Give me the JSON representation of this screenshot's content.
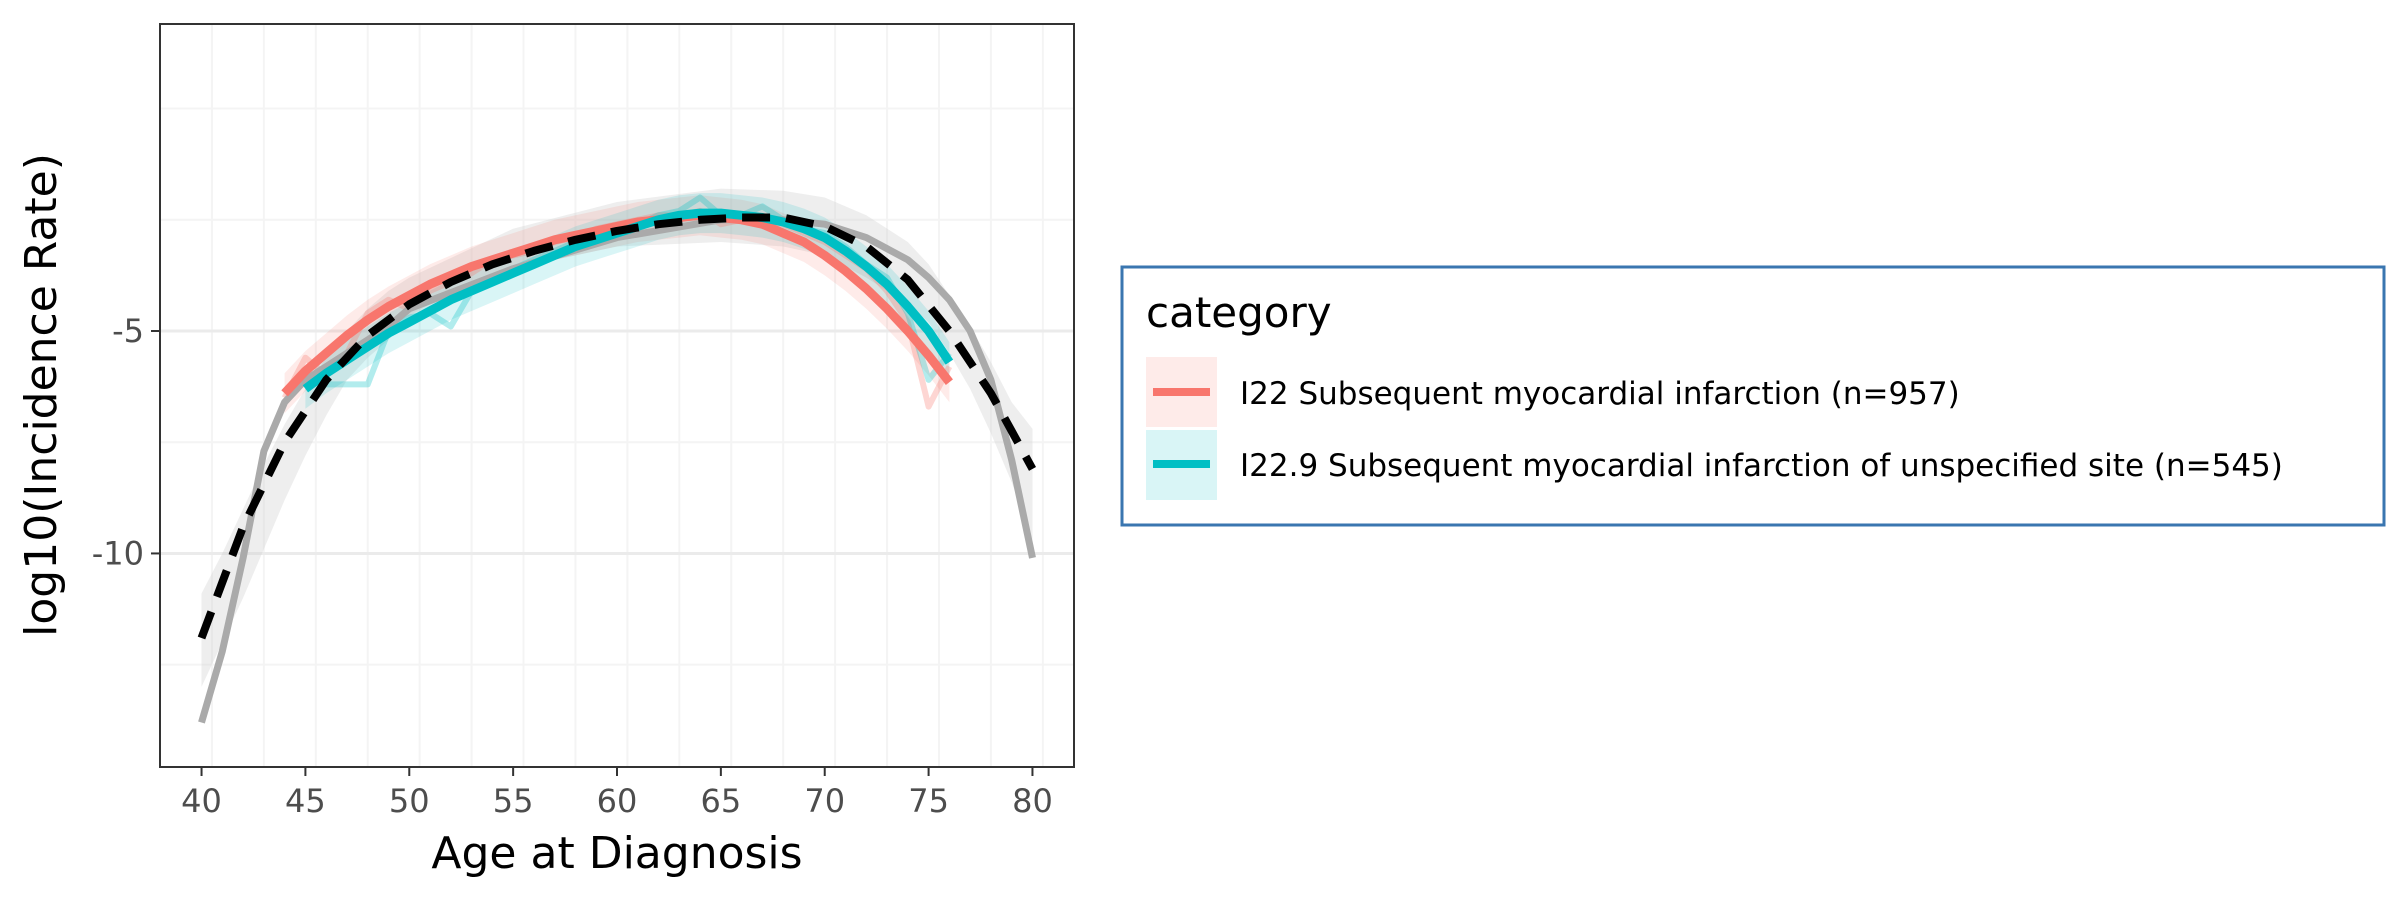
{
  "chart_data": {
    "type": "line",
    "xlabel": "Age at Diagnosis",
    "ylabel": "log10(Incidence Rate)",
    "xlim": [
      38,
      82
    ],
    "ylim": [
      -14.8,
      1.9
    ],
    "x_ticks": [
      40,
      45,
      50,
      55,
      60,
      65,
      70,
      75,
      80
    ],
    "x_tick_labels": [
      "40",
      "45",
      "50",
      "55",
      "60",
      "65",
      "70",
      "75",
      "80"
    ],
    "y_ticks": [
      -5,
      -10
    ],
    "y_tick_labels": [
      "-5",
      "-10"
    ],
    "grid": true,
    "legend": {
      "title": "category",
      "position": "right",
      "border_color": "#3a76b0"
    },
    "reference": {
      "population_curve": {
        "color": "#aaaaaa",
        "x": [
          40,
          41,
          42,
          43,
          44,
          45,
          46,
          47,
          48,
          49,
          50,
          55,
          60,
          65,
          68,
          70,
          72,
          74,
          75,
          76,
          77,
          78,
          79,
          80
        ],
        "y": [
          -13.8,
          -12.2,
          -10.1,
          -7.7,
          -6.6,
          -6.1,
          -5.8,
          -5.5,
          -5.2,
          -4.9,
          -4.5,
          -3.6,
          -2.9,
          -2.5,
          -2.5,
          -2.6,
          -2.9,
          -3.4,
          -3.8,
          -4.3,
          -5.0,
          -6.1,
          -7.9,
          -10.1
        ]
      },
      "population_band": {
        "color": "#cfcfcf",
        "x": [
          40,
          41,
          42,
          43,
          44,
          45,
          46,
          47,
          48,
          49,
          50,
          55,
          60,
          65,
          68,
          70,
          72,
          74,
          75,
          76,
          77,
          78,
          79,
          80
        ],
        "upper": [
          -10.9,
          -10.0,
          -9.0,
          -8.0,
          -7.1,
          -6.3,
          -5.6,
          -5.0,
          -4.5,
          -4.1,
          -3.8,
          -2.7,
          -2.1,
          -1.8,
          -1.85,
          -2.0,
          -2.4,
          -3.0,
          -3.5,
          -4.2,
          -4.9,
          -5.7,
          -6.6,
          -7.2
        ],
        "lower": [
          -13.0,
          -12.0,
          -11.0,
          -9.9,
          -8.8,
          -7.8,
          -6.9,
          -6.1,
          -5.6,
          -5.2,
          -4.7,
          -3.6,
          -3.1,
          -3.0,
          -3.1,
          -3.3,
          -3.8,
          -4.4,
          -4.8,
          -5.5,
          -6.3,
          -7.3,
          -8.4,
          -9.7
        ]
      },
      "overall_fit": {
        "color": "#000000",
        "dashed": true,
        "x": [
          40,
          42,
          44,
          46,
          48,
          50,
          52,
          54,
          56,
          58,
          60,
          62,
          64,
          66,
          68,
          70,
          72,
          74,
          76,
          78,
          80
        ],
        "y": [
          -11.9,
          -9.4,
          -7.5,
          -6.1,
          -5.1,
          -4.4,
          -3.9,
          -3.5,
          -3.2,
          -2.95,
          -2.75,
          -2.6,
          -2.5,
          -2.45,
          -2.45,
          -2.65,
          -3.1,
          -3.85,
          -5.0,
          -6.4,
          -8.1
        ]
      }
    },
    "series": [
      {
        "name": "I22 Subsequent myocardial infarction (n=957)",
        "color": "#f8766d",
        "x": [
          44,
          45,
          46,
          47,
          48,
          49,
          50,
          51,
          52,
          53,
          54,
          55,
          56,
          57,
          58,
          59,
          60,
          61,
          62,
          63,
          64,
          65,
          66,
          67,
          68,
          69,
          70,
          71,
          72,
          73,
          74,
          75,
          76
        ],
        "observed": [
          -6.5,
          -5.6,
          -6.0,
          -5.5,
          -4.6,
          -4.3,
          -4.5,
          -4.1,
          -3.9,
          -3.7,
          -3.4,
          -3.3,
          -3.2,
          -3.0,
          -2.9,
          -2.7,
          -2.6,
          -2.5,
          -2.4,
          -2.4,
          -2.3,
          -2.6,
          -2.5,
          -2.5,
          -2.6,
          -2.8,
          -3.0,
          -3.3,
          -3.6,
          -4.1,
          -4.8,
          -6.7,
          -5.8
        ],
        "fit": [
          -6.4,
          -5.9,
          -5.5,
          -5.1,
          -4.75,
          -4.45,
          -4.2,
          -3.95,
          -3.75,
          -3.55,
          -3.4,
          -3.25,
          -3.1,
          -2.95,
          -2.85,
          -2.75,
          -2.65,
          -2.55,
          -2.5,
          -2.45,
          -2.4,
          -2.45,
          -2.5,
          -2.6,
          -2.8,
          -3.0,
          -3.3,
          -3.65,
          -4.05,
          -4.5,
          -5.0,
          -5.55,
          -6.15
        ]
      },
      {
        "name": "I22.9 Subsequent myocardial infarction of unspecified site (n=545)",
        "color": "#00bfc4",
        "x": [
          45,
          46,
          47,
          48,
          49,
          50,
          51,
          52,
          53,
          54,
          55,
          56,
          57,
          58,
          59,
          60,
          61,
          62,
          63,
          64,
          65,
          66,
          67,
          68,
          69,
          70,
          71,
          72,
          73,
          74,
          75,
          76
        ],
        "observed": [
          -6.0,
          -6.2,
          -6.2,
          -6.2,
          -5.0,
          -4.7,
          -4.6,
          -4.9,
          -4.1,
          -3.8,
          -3.6,
          -3.4,
          -3.2,
          -3.0,
          -2.9,
          -2.7,
          -2.6,
          -2.4,
          -2.3,
          -2.0,
          -2.4,
          -2.4,
          -2.2,
          -2.5,
          -2.7,
          -2.8,
          -3.1,
          -3.5,
          -3.8,
          -4.6,
          -6.1,
          -5.5
        ],
        "fit": [
          -6.3,
          -5.95,
          -5.65,
          -5.35,
          -5.05,
          -4.8,
          -4.55,
          -4.3,
          -4.1,
          -3.9,
          -3.7,
          -3.5,
          -3.3,
          -3.1,
          -2.95,
          -2.8,
          -2.65,
          -2.5,
          -2.4,
          -2.35,
          -2.35,
          -2.4,
          -2.45,
          -2.55,
          -2.7,
          -2.9,
          -3.2,
          -3.55,
          -3.95,
          -4.45,
          -5.0,
          -5.7
        ]
      }
    ]
  }
}
